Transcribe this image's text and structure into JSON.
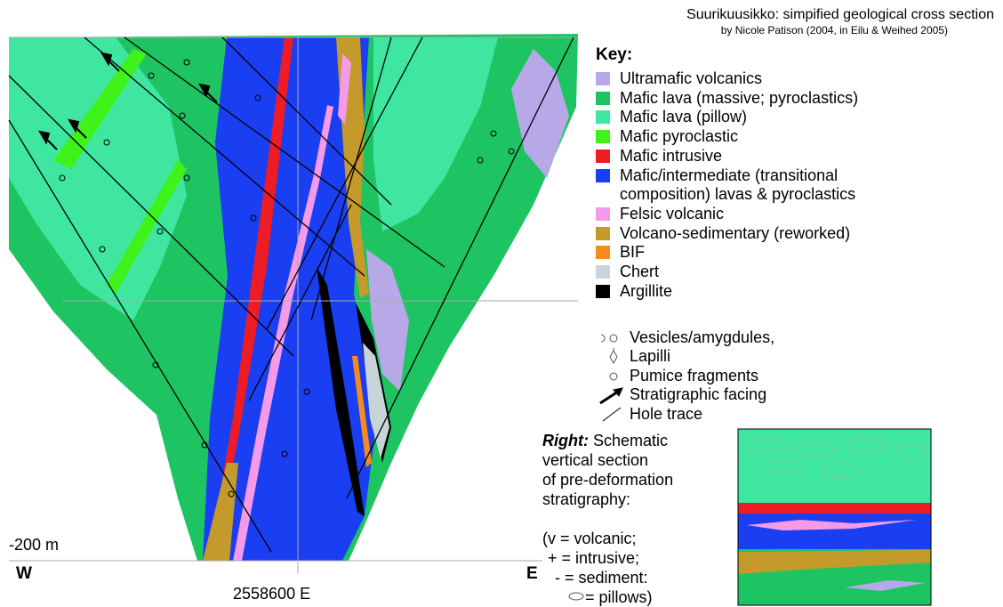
{
  "header": {
    "title": "Suurikuusikko: simpified geological cross section",
    "subtitle": "by Nicole Patison (2004, in Eilu & Weihed 2005)"
  },
  "key": {
    "heading": "Key:",
    "items": [
      {
        "label": "Ultramafic volcanics",
        "color": "#b7a9e8"
      },
      {
        "label": "Mafic lava (massive; pyroclastics)",
        "color": "#1fc462"
      },
      {
        "label": "Mafic lava (pillow)",
        "color": "#3fe6a0"
      },
      {
        "label": "Mafic pyroclastic",
        "color": "#3ef21a"
      },
      {
        "label": "Mafic intrusive",
        "color": "#ee1c24"
      },
      {
        "label": "Mafic/intermediate (transitional composition) lavas & pyroclastics",
        "color": "#1a3ff2"
      },
      {
        "label": "Felsic volcanic",
        "color": "#f49ae8"
      },
      {
        "label": "Volcano-sedimentary (reworked)",
        "color": "#c49a2a"
      },
      {
        "label": "BIF",
        "color": "#f58a1f"
      },
      {
        "label": "Chert",
        "color": "#c8d4d8"
      },
      {
        "label": "Argillite",
        "color": "#000000"
      }
    ]
  },
  "symbols": [
    {
      "label": "Vesicles/amygdules,"
    },
    {
      "label": "Lapilli"
    },
    {
      "label": "Pumice fragments"
    },
    {
      "label": "Stratigraphic facing"
    },
    {
      "label": "Hole trace"
    }
  ],
  "section": {
    "depth_label": "-200 m",
    "west": "W",
    "east": "E",
    "easting": "2558600 E"
  },
  "note": {
    "lead": "Right:",
    "lines": [
      "Schematic",
      "vertical section",
      "of pre-deformation",
      "stratigraphy:"
    ],
    "abbreviations": [
      "(v = volcanic;",
      "+ = intrusive;",
      "- = sediment:",
      "= pillows)"
    ]
  }
}
